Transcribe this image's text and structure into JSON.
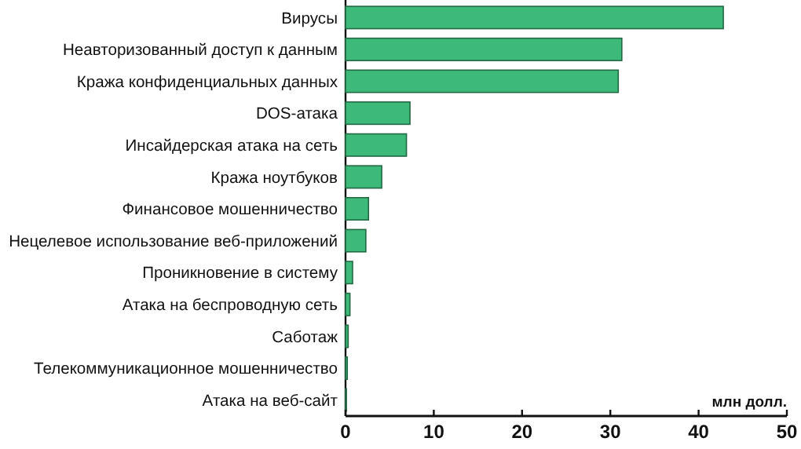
{
  "chart_data": {
    "type": "bar",
    "orientation": "horizontal",
    "xlabel": "млн долл.",
    "categories": [
      "Вирусы",
      "Неавторизованный доступ к данным",
      "Кража конфиденциальных данных",
      "DOS-атака",
      "Инсайдерская атака на сеть",
      "Кража ноутбуков",
      "Финансовое мошенничество",
      "Нецелевое использование веб-приложений",
      "Проникновение в систему",
      "Атака на беспроводную сеть",
      "Саботаж",
      "Телекоммуникационное мошенничество",
      "Атака на веб-сайт"
    ],
    "values": [
      42.8,
      31.3,
      30.9,
      7.3,
      6.9,
      4.1,
      2.6,
      2.3,
      0.8,
      0.5,
      0.3,
      0.2,
      0.1
    ],
    "color": "#3dba79",
    "xlim": [
      0,
      50
    ],
    "xticks": [
      0,
      10,
      20,
      30,
      40,
      50
    ],
    "grid": false
  }
}
